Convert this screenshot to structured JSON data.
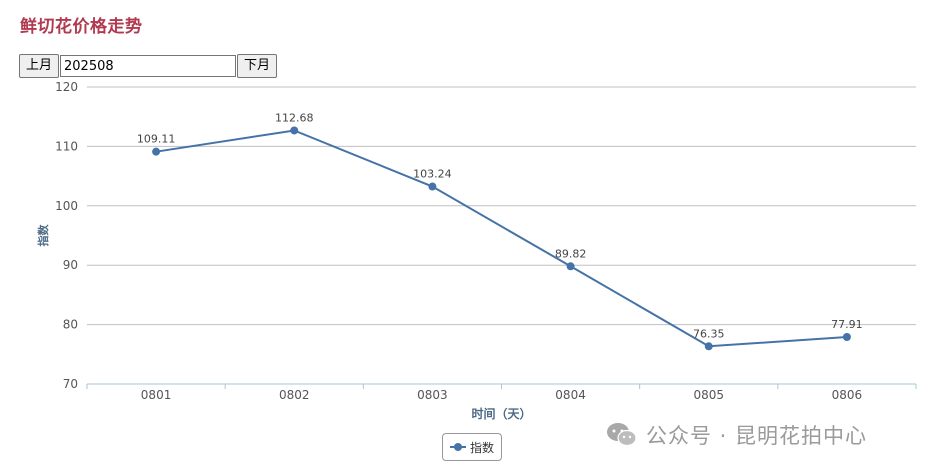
{
  "page": {
    "title": "鲜切花价格走势"
  },
  "nav": {
    "prev_label": "上月",
    "month_value": "202508",
    "next_label": "下月"
  },
  "watermark": {
    "text": "公众号 · 昆明花拍中心",
    "icon": "wechat-icon"
  },
  "colors": {
    "title": "#b03a4f",
    "series": "#4572a7",
    "grid": "#c0c0c0"
  },
  "chart_data": {
    "type": "line",
    "title": "",
    "xlabel": "时间（天）",
    "ylabel": "指数",
    "categories": [
      "0801",
      "0802",
      "0803",
      "0804",
      "0805",
      "0806"
    ],
    "series": [
      {
        "name": "指数",
        "values": [
          109.11,
          112.68,
          103.24,
          89.82,
          76.35,
          77.91
        ],
        "data_labels": [
          "109.11",
          "112.68",
          "103.24",
          "89.82",
          "76.35",
          "77.91"
        ]
      }
    ],
    "ylim": [
      70,
      120
    ],
    "yticks": [
      "70",
      "80",
      "90",
      "100",
      "110",
      "120"
    ],
    "grid": true,
    "legend": "bottom-center"
  }
}
